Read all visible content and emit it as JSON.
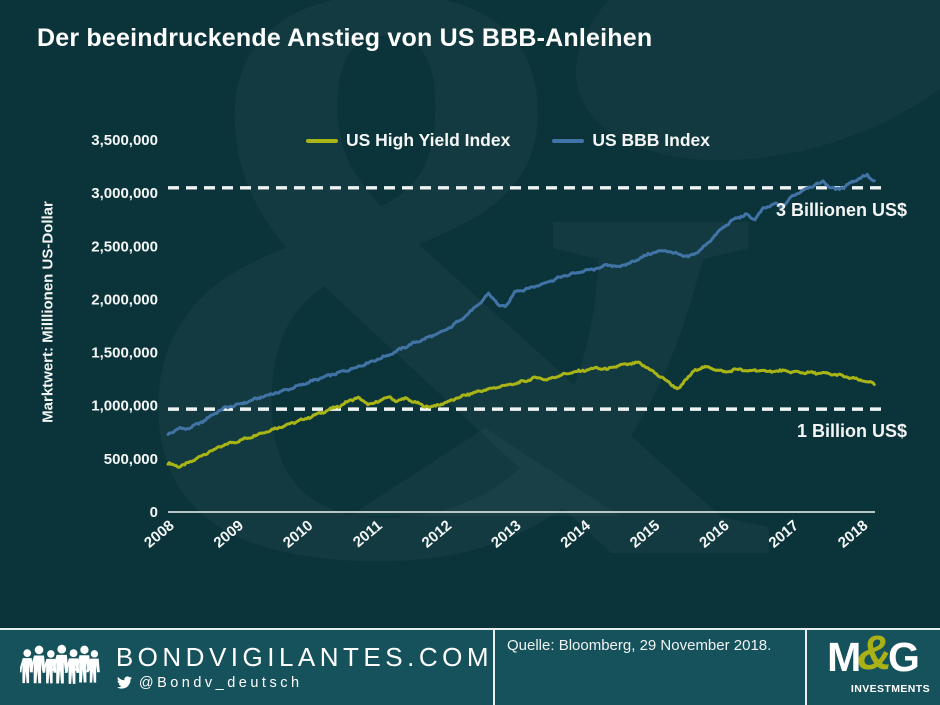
{
  "title": "Der beeindruckende Anstieg von US BBB-Anleihen",
  "watermark": "&",
  "colors": {
    "background": "#0b343a",
    "footer_background": "#16525c",
    "high_yield_line": "#a9b417",
    "bbb_line": "#4273a6",
    "text": "#f4f6f5",
    "dashed_line": "#eef3f3",
    "mg_amp": "#a9b117"
  },
  "chart_data": {
    "type": "line",
    "title": "",
    "xlabel": "",
    "ylabel": "Marktwert: Milllionen US-Dollar",
    "xlim": [
      2008,
      2018.19
    ],
    "ylim": [
      0,
      3500000
    ],
    "grid": false,
    "legend_position": "top-center",
    "y_ticks": [
      {
        "value": 0,
        "label": "0"
      },
      {
        "value": 500000,
        "label": "500,000"
      },
      {
        "value": 1000000,
        "label": "1,000,000"
      },
      {
        "value": 1500000,
        "label": "1,500,000"
      },
      {
        "value": 2000000,
        "label": "2,000,000"
      },
      {
        "value": 2500000,
        "label": "2,500,000"
      },
      {
        "value": 3000000,
        "label": "3,000,000"
      },
      {
        "value": 3500000,
        "label": "3,500,000"
      }
    ],
    "x_ticks": [
      {
        "value": 2008,
        "label": "2008"
      },
      {
        "value": 2009,
        "label": "2009"
      },
      {
        "value": 2010,
        "label": "2010"
      },
      {
        "value": 2011,
        "label": "2011"
      },
      {
        "value": 2012,
        "label": "2012"
      },
      {
        "value": 2013,
        "label": "2013"
      },
      {
        "value": 2014,
        "label": "2014"
      },
      {
        "value": 2015,
        "label": "2015"
      },
      {
        "value": 2016,
        "label": "2016"
      },
      {
        "value": 2017,
        "label": "2017"
      },
      {
        "value": 2018,
        "label": "2018"
      }
    ],
    "annotations": [
      {
        "y": 3050000,
        "label": "3 Billionen US$"
      },
      {
        "y": 968000,
        "label": "1 Billion US$"
      }
    ],
    "series": [
      {
        "name": "US High Yield Index",
        "color": "#a9b417",
        "points": [
          [
            2008.0,
            458000
          ],
          [
            2008.08,
            442000
          ],
          [
            2008.17,
            428000
          ],
          [
            2008.25,
            446000
          ],
          [
            2008.33,
            475000
          ],
          [
            2008.42,
            505000
          ],
          [
            2008.5,
            535000
          ],
          [
            2008.58,
            562000
          ],
          [
            2008.67,
            588000
          ],
          [
            2008.75,
            612000
          ],
          [
            2008.83,
            635000
          ],
          [
            2008.92,
            652000
          ],
          [
            2009.0,
            665000
          ],
          [
            2009.17,
            702000
          ],
          [
            2009.33,
            738000
          ],
          [
            2009.5,
            775000
          ],
          [
            2009.67,
            812000
          ],
          [
            2009.83,
            845000
          ],
          [
            2010.0,
            882000
          ],
          [
            2010.17,
            925000
          ],
          [
            2010.33,
            965000
          ],
          [
            2010.5,
            1005000
          ],
          [
            2010.62,
            1048000
          ],
          [
            2010.73,
            1078000
          ],
          [
            2010.85,
            1025000
          ],
          [
            2010.95,
            1012000
          ],
          [
            2011.08,
            1058000
          ],
          [
            2011.17,
            1082000
          ],
          [
            2011.29,
            1045000
          ],
          [
            2011.42,
            1068000
          ],
          [
            2011.54,
            1038000
          ],
          [
            2011.67,
            1002000
          ],
          [
            2011.79,
            988000
          ],
          [
            2011.92,
            1012000
          ],
          [
            2012.0,
            1028000
          ],
          [
            2012.17,
            1072000
          ],
          [
            2012.33,
            1108000
          ],
          [
            2012.5,
            1138000
          ],
          [
            2012.67,
            1162000
          ],
          [
            2012.83,
            1188000
          ],
          [
            2013.0,
            1205000
          ],
          [
            2013.17,
            1238000
          ],
          [
            2013.33,
            1268000
          ],
          [
            2013.46,
            1242000
          ],
          [
            2013.62,
            1282000
          ],
          [
            2013.79,
            1308000
          ],
          [
            2014.0,
            1332000
          ],
          [
            2014.17,
            1355000
          ],
          [
            2014.33,
            1342000
          ],
          [
            2014.5,
            1378000
          ],
          [
            2014.67,
            1395000
          ],
          [
            2014.79,
            1402000
          ],
          [
            2014.92,
            1352000
          ],
          [
            2015.04,
            1298000
          ],
          [
            2015.17,
            1242000
          ],
          [
            2015.29,
            1185000
          ],
          [
            2015.37,
            1152000
          ],
          [
            2015.46,
            1248000
          ],
          [
            2015.58,
            1322000
          ],
          [
            2015.71,
            1368000
          ],
          [
            2015.83,
            1352000
          ],
          [
            2015.92,
            1338000
          ],
          [
            2016.04,
            1312000
          ],
          [
            2016.17,
            1345000
          ],
          [
            2016.33,
            1328000
          ],
          [
            2016.5,
            1332000
          ],
          [
            2016.67,
            1322000
          ],
          [
            2016.83,
            1328000
          ],
          [
            2017.0,
            1318000
          ],
          [
            2017.17,
            1312000
          ],
          [
            2017.33,
            1308000
          ],
          [
            2017.5,
            1302000
          ],
          [
            2017.67,
            1288000
          ],
          [
            2017.83,
            1262000
          ],
          [
            2018.0,
            1238000
          ],
          [
            2018.1,
            1222000
          ],
          [
            2018.19,
            1203000
          ]
        ]
      },
      {
        "name": "US BBB Index",
        "color": "#4273a6",
        "points": [
          [
            2008.0,
            730000
          ],
          [
            2008.08,
            758000
          ],
          [
            2008.17,
            792000
          ],
          [
            2008.25,
            778000
          ],
          [
            2008.33,
            798000
          ],
          [
            2008.42,
            825000
          ],
          [
            2008.5,
            852000
          ],
          [
            2008.58,
            888000
          ],
          [
            2008.67,
            925000
          ],
          [
            2008.75,
            958000
          ],
          [
            2008.83,
            982000
          ],
          [
            2008.92,
            995000
          ],
          [
            2009.0,
            1008000
          ],
          [
            2009.17,
            1042000
          ],
          [
            2009.33,
            1078000
          ],
          [
            2009.5,
            1110000
          ],
          [
            2009.67,
            1142000
          ],
          [
            2009.83,
            1175000
          ],
          [
            2010.0,
            1215000
          ],
          [
            2010.17,
            1252000
          ],
          [
            2010.33,
            1285000
          ],
          [
            2010.5,
            1318000
          ],
          [
            2010.67,
            1352000
          ],
          [
            2010.83,
            1390000
          ],
          [
            2011.0,
            1432000
          ],
          [
            2011.17,
            1475000
          ],
          [
            2011.33,
            1525000
          ],
          [
            2011.5,
            1578000
          ],
          [
            2011.67,
            1622000
          ],
          [
            2011.83,
            1662000
          ],
          [
            2012.0,
            1708000
          ],
          [
            2012.17,
            1788000
          ],
          [
            2012.33,
            1868000
          ],
          [
            2012.5,
            1965000
          ],
          [
            2012.62,
            2055000
          ],
          [
            2012.71,
            1995000
          ],
          [
            2012.79,
            1925000
          ],
          [
            2012.88,
            1945000
          ],
          [
            2013.0,
            2075000
          ],
          [
            2013.17,
            2098000
          ],
          [
            2013.33,
            2132000
          ],
          [
            2013.5,
            2172000
          ],
          [
            2013.67,
            2212000
          ],
          [
            2013.83,
            2242000
          ],
          [
            2014.0,
            2268000
          ],
          [
            2014.17,
            2288000
          ],
          [
            2014.33,
            2325000
          ],
          [
            2014.5,
            2308000
          ],
          [
            2014.67,
            2345000
          ],
          [
            2014.83,
            2398000
          ],
          [
            2015.0,
            2442000
          ],
          [
            2015.17,
            2462000
          ],
          [
            2015.33,
            2428000
          ],
          [
            2015.5,
            2398000
          ],
          [
            2015.67,
            2462000
          ],
          [
            2015.83,
            2565000
          ],
          [
            2016.0,
            2678000
          ],
          [
            2016.17,
            2758000
          ],
          [
            2016.33,
            2798000
          ],
          [
            2016.45,
            2752000
          ],
          [
            2016.58,
            2852000
          ],
          [
            2016.75,
            2902000
          ],
          [
            2016.85,
            2868000
          ],
          [
            2017.0,
            2972000
          ],
          [
            2017.15,
            3028000
          ],
          [
            2017.3,
            3072000
          ],
          [
            2017.45,
            3108000
          ],
          [
            2017.55,
            3052000
          ],
          [
            2017.65,
            3032000
          ],
          [
            2017.75,
            3065000
          ],
          [
            2017.88,
            3112000
          ],
          [
            2018.0,
            3152000
          ],
          [
            2018.08,
            3168000
          ],
          [
            2018.13,
            3135000
          ],
          [
            2018.19,
            3108000
          ]
        ]
      }
    ]
  },
  "footer": {
    "site": "BONDVIGILANTES.COM",
    "twitter": "@Bondv_deutsch",
    "source": "Quelle: Bloomberg, 29 November 2018.",
    "crowd_icon": "crowd-people-icon",
    "twitter_icon": "twitter-bird-icon",
    "logo": {
      "m": "M",
      "amp": "&",
      "g": "G",
      "sub": "INVESTMENTS"
    }
  }
}
